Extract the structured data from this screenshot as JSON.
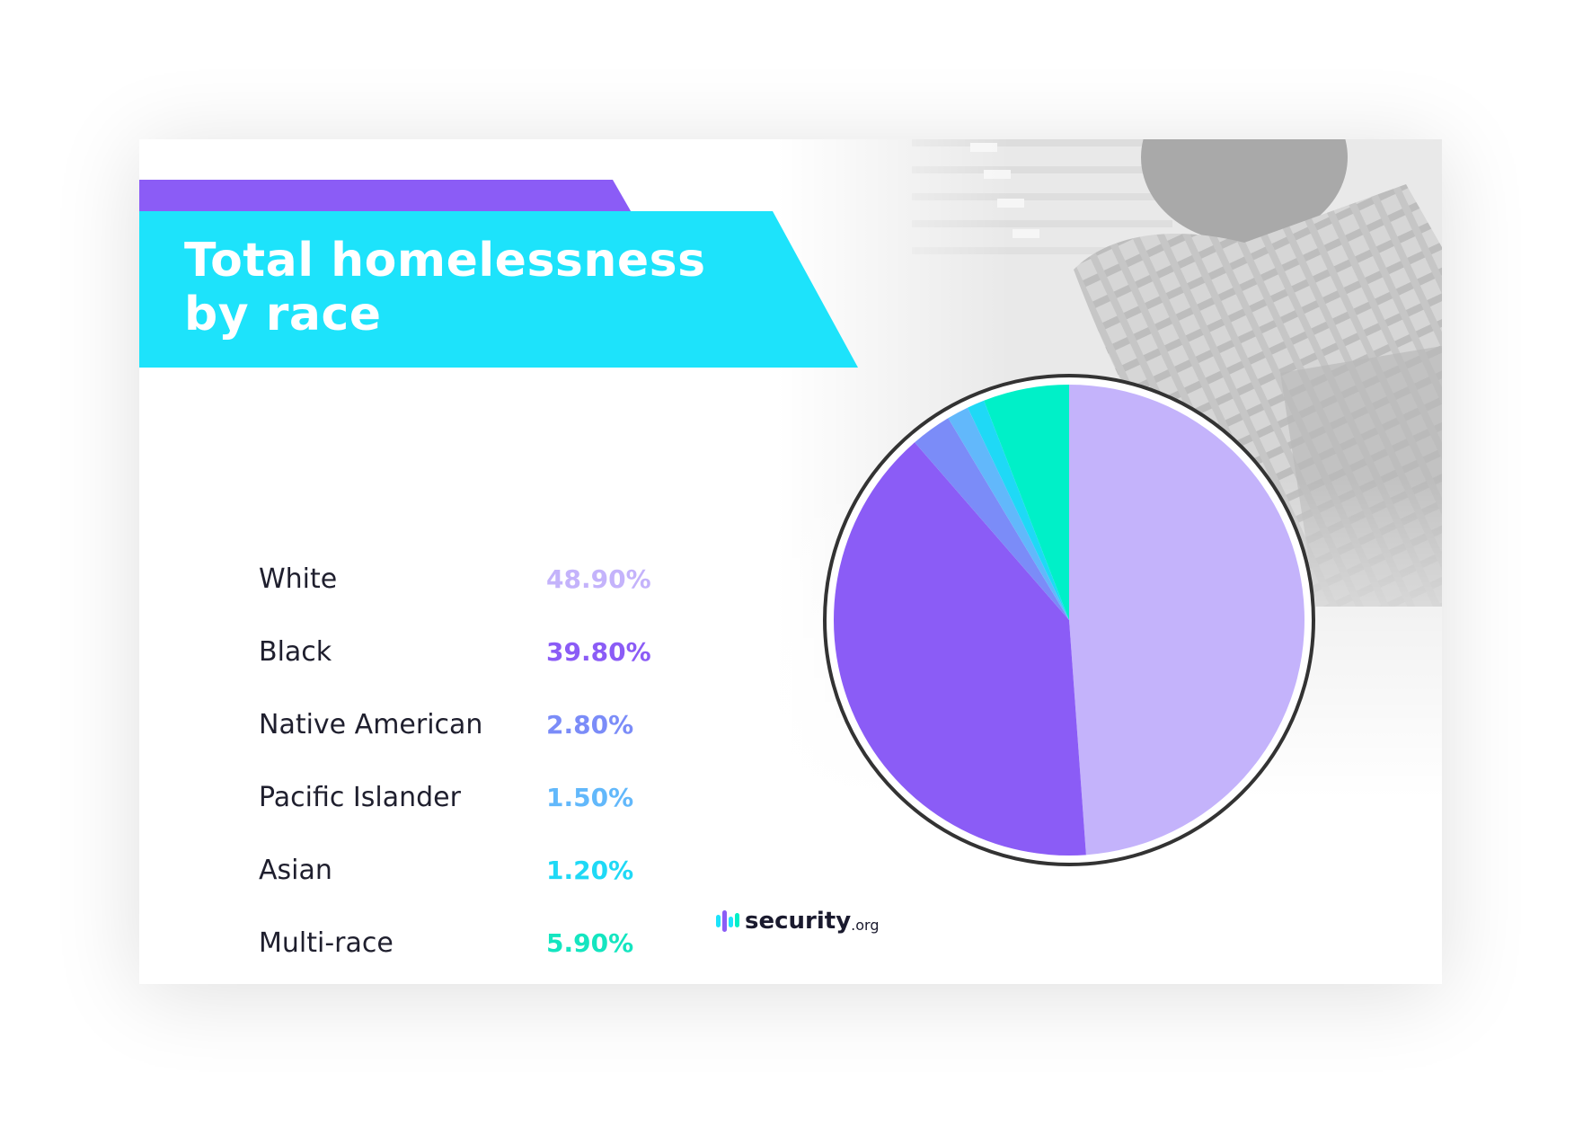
{
  "colors": {
    "banner_cyan": "#1de3fb",
    "banner_purple": "#8b5cf6",
    "ring": "#333333"
  },
  "logo": {
    "name": "security",
    "suffix": ".org"
  },
  "chart_data": {
    "type": "pie",
    "title": "Total homelessness by race",
    "categories": [
      "White",
      "Black",
      "Native American",
      "Pacific Islander",
      "Asian",
      "Multi-race"
    ],
    "values": [
      48.9,
      39.8,
      2.8,
      1.5,
      1.2,
      5.9
    ],
    "value_labels": [
      "48.90%",
      "39.80%",
      "2.80%",
      "1.50%",
      "1.20%",
      "5.90%"
    ],
    "colors": [
      "#c4b3fb",
      "#8b5cf6",
      "#7b8cf8",
      "#62b8fb",
      "#1fd9f6",
      "#00f0c8"
    ],
    "value_text_colors": [
      "#c4b3fb",
      "#8b5cf6",
      "#7b8cf8",
      "#62b8fb",
      "#1fd9f6",
      "#14e5c0"
    ],
    "legend_position": "left"
  }
}
